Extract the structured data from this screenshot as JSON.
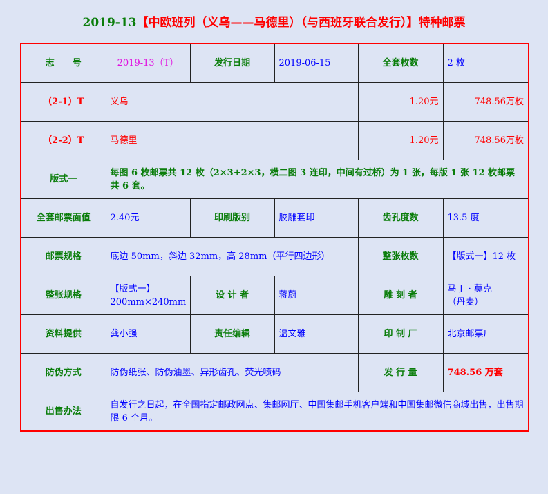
{
  "title": {
    "code": "2019-13",
    "name": "【中欧班列（义乌——马德里）（与西班牙联合发行）】特种邮票"
  },
  "colors": {
    "label": "#0a7d0a",
    "value": "#0000ff",
    "accent": "#ff0000",
    "code": "#e010e0"
  },
  "rows": {
    "r1": {
      "l1": "志　　号",
      "v1": "2019-13（T）",
      "l2": "发行日期",
      "v2": "2019-06-15",
      "l3": "全套枚数",
      "v3": "2 枚"
    },
    "r2": {
      "l1": "（2-1）T",
      "v1": "义乌",
      "v2": "1.20元",
      "v3": "748.56万枚"
    },
    "r3": {
      "l1": "（2-2）T",
      "v1": "马德里",
      "v2": "1.20元",
      "v3": "748.56万枚"
    },
    "r4": {
      "l1": "版式一",
      "v1": "每图 6 枚邮票共 12 枚（2×3+2×3，横二图 3 连印，中间有过桥）为 1 张，每版 1 张 12 枚邮票共 6 套。"
    },
    "r5": {
      "l1": "全套邮票面值",
      "v1": "2.40元",
      "l2": "印刷版别",
      "v2": "胶雕套印",
      "l3": "齿孔度数",
      "v3": "13.5 度"
    },
    "r6": {
      "l1": "邮票规格",
      "v1": "底边 50mm，斜边 32mm，高 28mm（平行四边形）",
      "l2": "整张枚数",
      "v2": "【版式一】12 枚"
    },
    "r7": {
      "l1": "整张规格",
      "v1a": "【版式一】",
      "v1b": "200mm×240mm",
      "l2": "设 计 者",
      "v2": "蒋蔚",
      "l3": "雕 刻 者",
      "v3a": "马丁 · 莫克",
      "v3b": "（丹麦）"
    },
    "r8": {
      "l1": "资料提供",
      "v1": "龚小强",
      "l2": "责任编辑",
      "v2": "温文雅",
      "l3": "印 制 厂",
      "v3": "北京邮票厂"
    },
    "r9": {
      "l1": "防伪方式",
      "v1": "防伪纸张、防伪油墨、异形齿孔、荧光喷码",
      "l2": "发 行 量",
      "v2": "748.56 万套"
    },
    "r10": {
      "l1": "出售办法",
      "v1": "自发行之日起，在全国指定邮政网点、集邮网厅、中国集邮手机客户端和中国集邮微信商城出售，出售期限 6 个月。"
    }
  }
}
